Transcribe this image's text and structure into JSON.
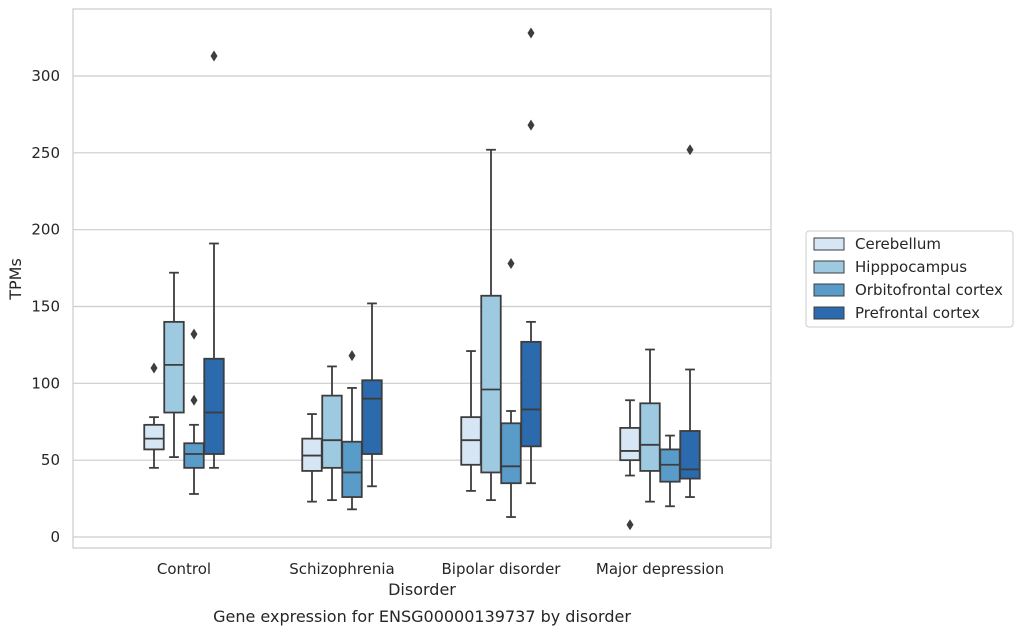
{
  "chart_data": {
    "type": "box",
    "caption": "Gene expression for ENSG00000139737 by disorder",
    "xlabel": "Disorder",
    "ylabel": "TPMs",
    "ylim": [
      -7,
      345
    ],
    "yticks": [
      0,
      50,
      100,
      150,
      200,
      250,
      300
    ],
    "grid": true,
    "legend_position": "right",
    "categories": [
      "Control",
      "Schizophrenia",
      "Bipolar disorder",
      "Major depression"
    ],
    "series": [
      {
        "name": "Cerebellum",
        "color": "#d6e6f4",
        "boxes": [
          {
            "whislo": 45,
            "q1": 57,
            "med": 64,
            "q3": 73,
            "whishi": 78,
            "fliers": [
              110
            ]
          },
          {
            "whislo": 23,
            "q1": 43,
            "med": 53,
            "q3": 64,
            "whishi": 80,
            "fliers": []
          },
          {
            "whislo": 30,
            "q1": 47,
            "med": 63,
            "q3": 78,
            "whishi": 121,
            "fliers": []
          },
          {
            "whislo": 40,
            "q1": 50,
            "med": 56,
            "q3": 71,
            "whishi": 89,
            "fliers": [
              8
            ]
          }
        ]
      },
      {
        "name": "Hipppocampus",
        "color": "#9ecae1",
        "boxes": [
          {
            "whislo": 52,
            "q1": 81,
            "med": 112,
            "q3": 140,
            "whishi": 172,
            "fliers": []
          },
          {
            "whislo": 24,
            "q1": 45,
            "med": 63,
            "q3": 92,
            "whishi": 111,
            "fliers": []
          },
          {
            "whislo": 24,
            "q1": 42,
            "med": 96,
            "q3": 157,
            "whishi": 252,
            "fliers": []
          },
          {
            "whislo": 23,
            "q1": 43,
            "med": 60,
            "q3": 87,
            "whishi": 122,
            "fliers": []
          }
        ]
      },
      {
        "name": "Orbitofrontal cortex",
        "color": "#5a9cc9",
        "boxes": [
          {
            "whislo": 28,
            "q1": 45,
            "med": 54,
            "q3": 61,
            "whishi": 73,
            "fliers": [
              89,
              132
            ]
          },
          {
            "whislo": 18,
            "q1": 26,
            "med": 42,
            "q3": 62,
            "whishi": 97,
            "fliers": [
              118
            ]
          },
          {
            "whislo": 13,
            "q1": 35,
            "med": 46,
            "q3": 74,
            "whishi": 82,
            "fliers": [
              178
            ]
          },
          {
            "whislo": 20,
            "q1": 36,
            "med": 47,
            "q3": 57,
            "whishi": 66,
            "fliers": []
          }
        ]
      },
      {
        "name": "Prefrontal cortex",
        "color": "#2a6aad",
        "boxes": [
          {
            "whislo": 45,
            "q1": 54,
            "med": 81,
            "q3": 116,
            "whishi": 191,
            "fliers": [
              313
            ]
          },
          {
            "whislo": 33,
            "q1": 54,
            "med": 90,
            "q3": 102,
            "whishi": 152,
            "fliers": []
          },
          {
            "whislo": 35,
            "q1": 59,
            "med": 83,
            "q3": 127,
            "whishi": 140,
            "fliers": [
              268,
              328
            ]
          },
          {
            "whislo": 26,
            "q1": 38,
            "med": 44,
            "q3": 69,
            "whishi": 109,
            "fliers": [
              252
            ]
          }
        ]
      }
    ]
  }
}
